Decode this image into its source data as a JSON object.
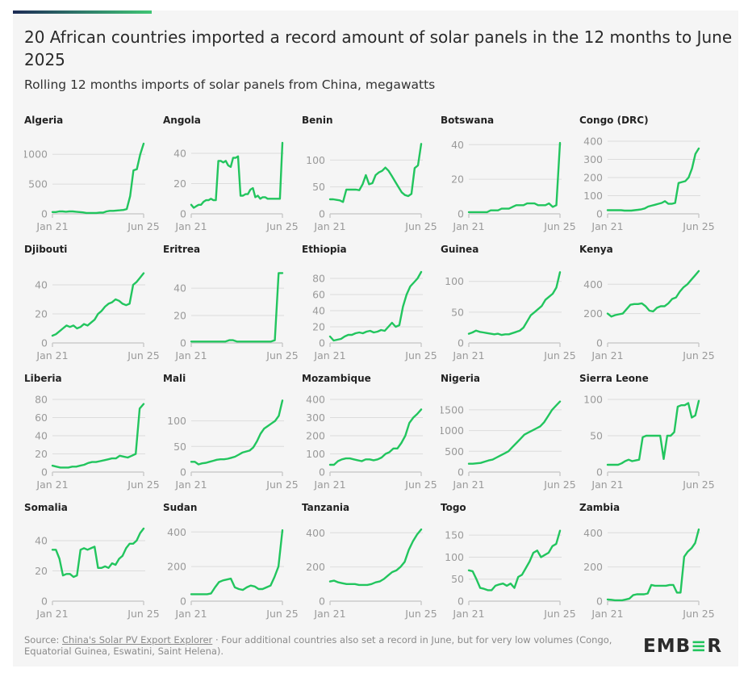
{
  "header": {
    "title": "20 African countries imported a record amount of solar panels in the 12 months to June 2025",
    "subtitle": "Rolling 12 months imports of solar panels from China, megawatts"
  },
  "footer": {
    "source_prefix": "Source: ",
    "source_link": "China's Solar PV Export Explorer",
    "note": " · Four additional countries also set a record in June, but for very low volumes (Congo, Equatorial Guinea, Eswatini, Saint Helena).",
    "logo": "EMBER"
  },
  "colors": {
    "line": "#22c55e",
    "grid": "#dcdcdc",
    "axis": "#cccccc"
  },
  "chart_data": {
    "type": "line",
    "title": "Rolling 12 months imports of solar panels from China, megawatts",
    "x_range": [
      "Jan 21",
      "Jun 25"
    ],
    "x_tick_labels": [
      "Jan 21",
      "Jun 25"
    ],
    "panels": [
      {
        "name": "Algeria",
        "ticks": [
          0,
          500,
          1000
        ],
        "ylim": [
          0,
          1220
        ],
        "values": [
          30,
          30,
          40,
          40,
          35,
          40,
          40,
          35,
          30,
          25,
          15,
          15,
          15,
          15,
          20,
          20,
          40,
          50,
          50,
          55,
          60,
          65,
          80,
          300,
          730,
          750,
          1000,
          1180
        ]
      },
      {
        "name": "Angola",
        "ticks": [
          0,
          20,
          40
        ],
        "ylim": [
          0,
          48
        ],
        "values": [
          6,
          4,
          5,
          6,
          6,
          8,
          9,
          9,
          10,
          9,
          9,
          35,
          35,
          34,
          35,
          32,
          31,
          37,
          37,
          38,
          12,
          12,
          13,
          13,
          16,
          17,
          11,
          12,
          10,
          11,
          11,
          10,
          10,
          10,
          10,
          10,
          10,
          47
        ]
      },
      {
        "name": "Benin",
        "ticks": [
          0,
          50,
          100
        ],
        "ylim": [
          0,
          135
        ],
        "values": [
          27,
          27,
          26,
          25,
          22,
          45,
          45,
          45,
          45,
          44,
          55,
          72,
          55,
          57,
          72,
          77,
          80,
          86,
          80,
          70,
          60,
          50,
          40,
          35,
          33,
          37,
          85,
          90,
          130
        ]
      },
      {
        "name": "Botswana",
        "ticks": [
          0,
          20,
          40
        ],
        "ylim": [
          0,
          42
        ],
        "values": [
          1,
          1,
          1,
          1,
          1,
          1,
          2,
          2,
          2,
          3,
          3,
          3,
          4,
          5,
          5,
          5,
          6,
          6,
          6,
          5,
          5,
          5,
          6,
          4,
          5,
          41
        ]
      },
      {
        "name": "Congo (DRC)",
        "ticks": [
          0,
          100,
          200,
          300,
          400
        ],
        "ylim": [
          0,
          400
        ],
        "values": [
          20,
          20,
          20,
          20,
          20,
          18,
          18,
          18,
          20,
          22,
          25,
          30,
          40,
          45,
          50,
          55,
          60,
          70,
          55,
          55,
          60,
          170,
          175,
          180,
          200,
          250,
          330,
          360
        ]
      },
      {
        "name": "Djibouti",
        "ticks": [
          0,
          20,
          40
        ],
        "ylim": [
          0,
          50
        ],
        "values": [
          5,
          6,
          8,
          10,
          12,
          11,
          12,
          10,
          11,
          13,
          12,
          14,
          16,
          20,
          22,
          25,
          27,
          28,
          30,
          29,
          27,
          26,
          27,
          40,
          42,
          45,
          48
        ]
      },
      {
        "name": "Eritrea",
        "ticks": [
          0,
          20,
          40
        ],
        "ylim": [
          0,
          53
        ],
        "values": [
          1,
          1,
          1,
          1,
          1,
          1,
          1,
          1,
          1,
          1,
          2,
          2,
          1,
          1,
          1,
          1,
          1,
          1,
          1,
          1,
          1,
          1,
          2,
          51,
          51
        ]
      },
      {
        "name": "Ethiopia",
        "ticks": [
          0,
          20,
          40,
          60,
          80
        ],
        "ylim": [
          0,
          90
        ],
        "values": [
          8,
          3,
          4,
          5,
          8,
          10,
          10,
          12,
          13,
          12,
          14,
          15,
          13,
          14,
          16,
          15,
          20,
          25,
          20,
          22,
          45,
          60,
          70,
          75,
          80,
          88
        ]
      },
      {
        "name": "Guinea",
        "ticks": [
          0,
          50,
          100
        ],
        "ylim": [
          0,
          118
        ],
        "values": [
          15,
          17,
          20,
          18,
          17,
          16,
          15,
          14,
          15,
          13,
          14,
          14,
          16,
          18,
          20,
          25,
          35,
          45,
          50,
          55,
          60,
          70,
          75,
          80,
          90,
          115
        ]
      },
      {
        "name": "Kenya",
        "ticks": [
          0,
          200,
          400
        ],
        "ylim": [
          0,
          495
        ],
        "values": [
          200,
          180,
          190,
          195,
          200,
          230,
          260,
          265,
          265,
          270,
          250,
          220,
          215,
          240,
          250,
          250,
          270,
          300,
          310,
          350,
          380,
          400,
          430,
          460,
          490
        ]
      },
      {
        "name": "Liberia",
        "ticks": [
          0,
          20,
          40,
          60,
          80
        ],
        "ylim": [
          0,
          80
        ],
        "values": [
          7,
          6,
          5,
          5,
          5,
          6,
          6,
          7,
          8,
          10,
          11,
          11,
          12,
          13,
          14,
          15,
          15,
          18,
          17,
          16,
          18,
          20,
          70,
          75
        ]
      },
      {
        "name": "Mali",
        "ticks": [
          0,
          50,
          100
        ],
        "ylim": [
          0,
          142
        ],
        "values": [
          20,
          20,
          15,
          17,
          18,
          20,
          22,
          24,
          25,
          25,
          26,
          28,
          30,
          34,
          38,
          40,
          42,
          48,
          60,
          75,
          85,
          90,
          95,
          100,
          110,
          140
        ]
      },
      {
        "name": "Mozambique",
        "ticks": [
          0,
          100,
          200,
          300,
          400
        ],
        "ylim": [
          0,
          400
        ],
        "values": [
          40,
          40,
          60,
          70,
          75,
          75,
          70,
          65,
          60,
          70,
          70,
          65,
          70,
          80,
          100,
          110,
          130,
          130,
          160,
          200,
          270,
          300,
          320,
          345
        ]
      },
      {
        "name": "Nigeria",
        "ticks": [
          0,
          500,
          1000,
          1500
        ],
        "ylim": [
          0,
          1750
        ],
        "values": [
          200,
          200,
          210,
          220,
          250,
          280,
          300,
          350,
          400,
          450,
          500,
          600,
          700,
          800,
          900,
          950,
          1000,
          1050,
          1100,
          1200,
          1350,
          1500,
          1600,
          1700
        ]
      },
      {
        "name": "Sierra Leone",
        "ticks": [
          0,
          50,
          100
        ],
        "ylim": [
          0,
          100
        ],
        "values": [
          10,
          10,
          10,
          10,
          12,
          15,
          17,
          15,
          16,
          17,
          48,
          50,
          50,
          50,
          50,
          50,
          18,
          50,
          50,
          55,
          90,
          92,
          92,
          95,
          75,
          78,
          98
        ]
      },
      {
        "name": "Somalia",
        "ticks": [
          0,
          20,
          40
        ],
        "ylim": [
          0,
          48
        ],
        "values": [
          34,
          34,
          28,
          17,
          18,
          18,
          16,
          17,
          34,
          35,
          34,
          35,
          36,
          22,
          22,
          23,
          22,
          25,
          24,
          28,
          30,
          35,
          38,
          38,
          40,
          45,
          48
        ]
      },
      {
        "name": "Sudan",
        "ticks": [
          0,
          200,
          400
        ],
        "ylim": [
          0,
          420
        ],
        "values": [
          40,
          40,
          40,
          40,
          40,
          45,
          80,
          110,
          120,
          125,
          130,
          80,
          70,
          65,
          80,
          90,
          85,
          70,
          70,
          80,
          90,
          140,
          200,
          410
        ]
      },
      {
        "name": "Tanzania",
        "ticks": [
          0,
          200,
          400
        ],
        "ylim": [
          0,
          425
        ],
        "values": [
          115,
          120,
          110,
          105,
          100,
          100,
          100,
          95,
          95,
          95,
          100,
          110,
          115,
          130,
          150,
          170,
          180,
          200,
          230,
          300,
          350,
          390,
          420
        ]
      },
      {
        "name": "Togo",
        "ticks": [
          0,
          50,
          100,
          150
        ],
        "ylim": [
          0,
          165
        ],
        "values": [
          70,
          68,
          50,
          30,
          28,
          25,
          25,
          35,
          38,
          40,
          35,
          40,
          30,
          55,
          60,
          75,
          90,
          110,
          115,
          100,
          105,
          110,
          125,
          130,
          160
        ]
      },
      {
        "name": "Zambia",
        "ticks": [
          0,
          200,
          400
        ],
        "ylim": [
          0,
          425
        ],
        "values": [
          10,
          8,
          5,
          5,
          5,
          10,
          15,
          35,
          40,
          40,
          40,
          45,
          95,
          90,
          90,
          90,
          90,
          95,
          95,
          50,
          50,
          260,
          290,
          310,
          340,
          420
        ]
      }
    ]
  }
}
